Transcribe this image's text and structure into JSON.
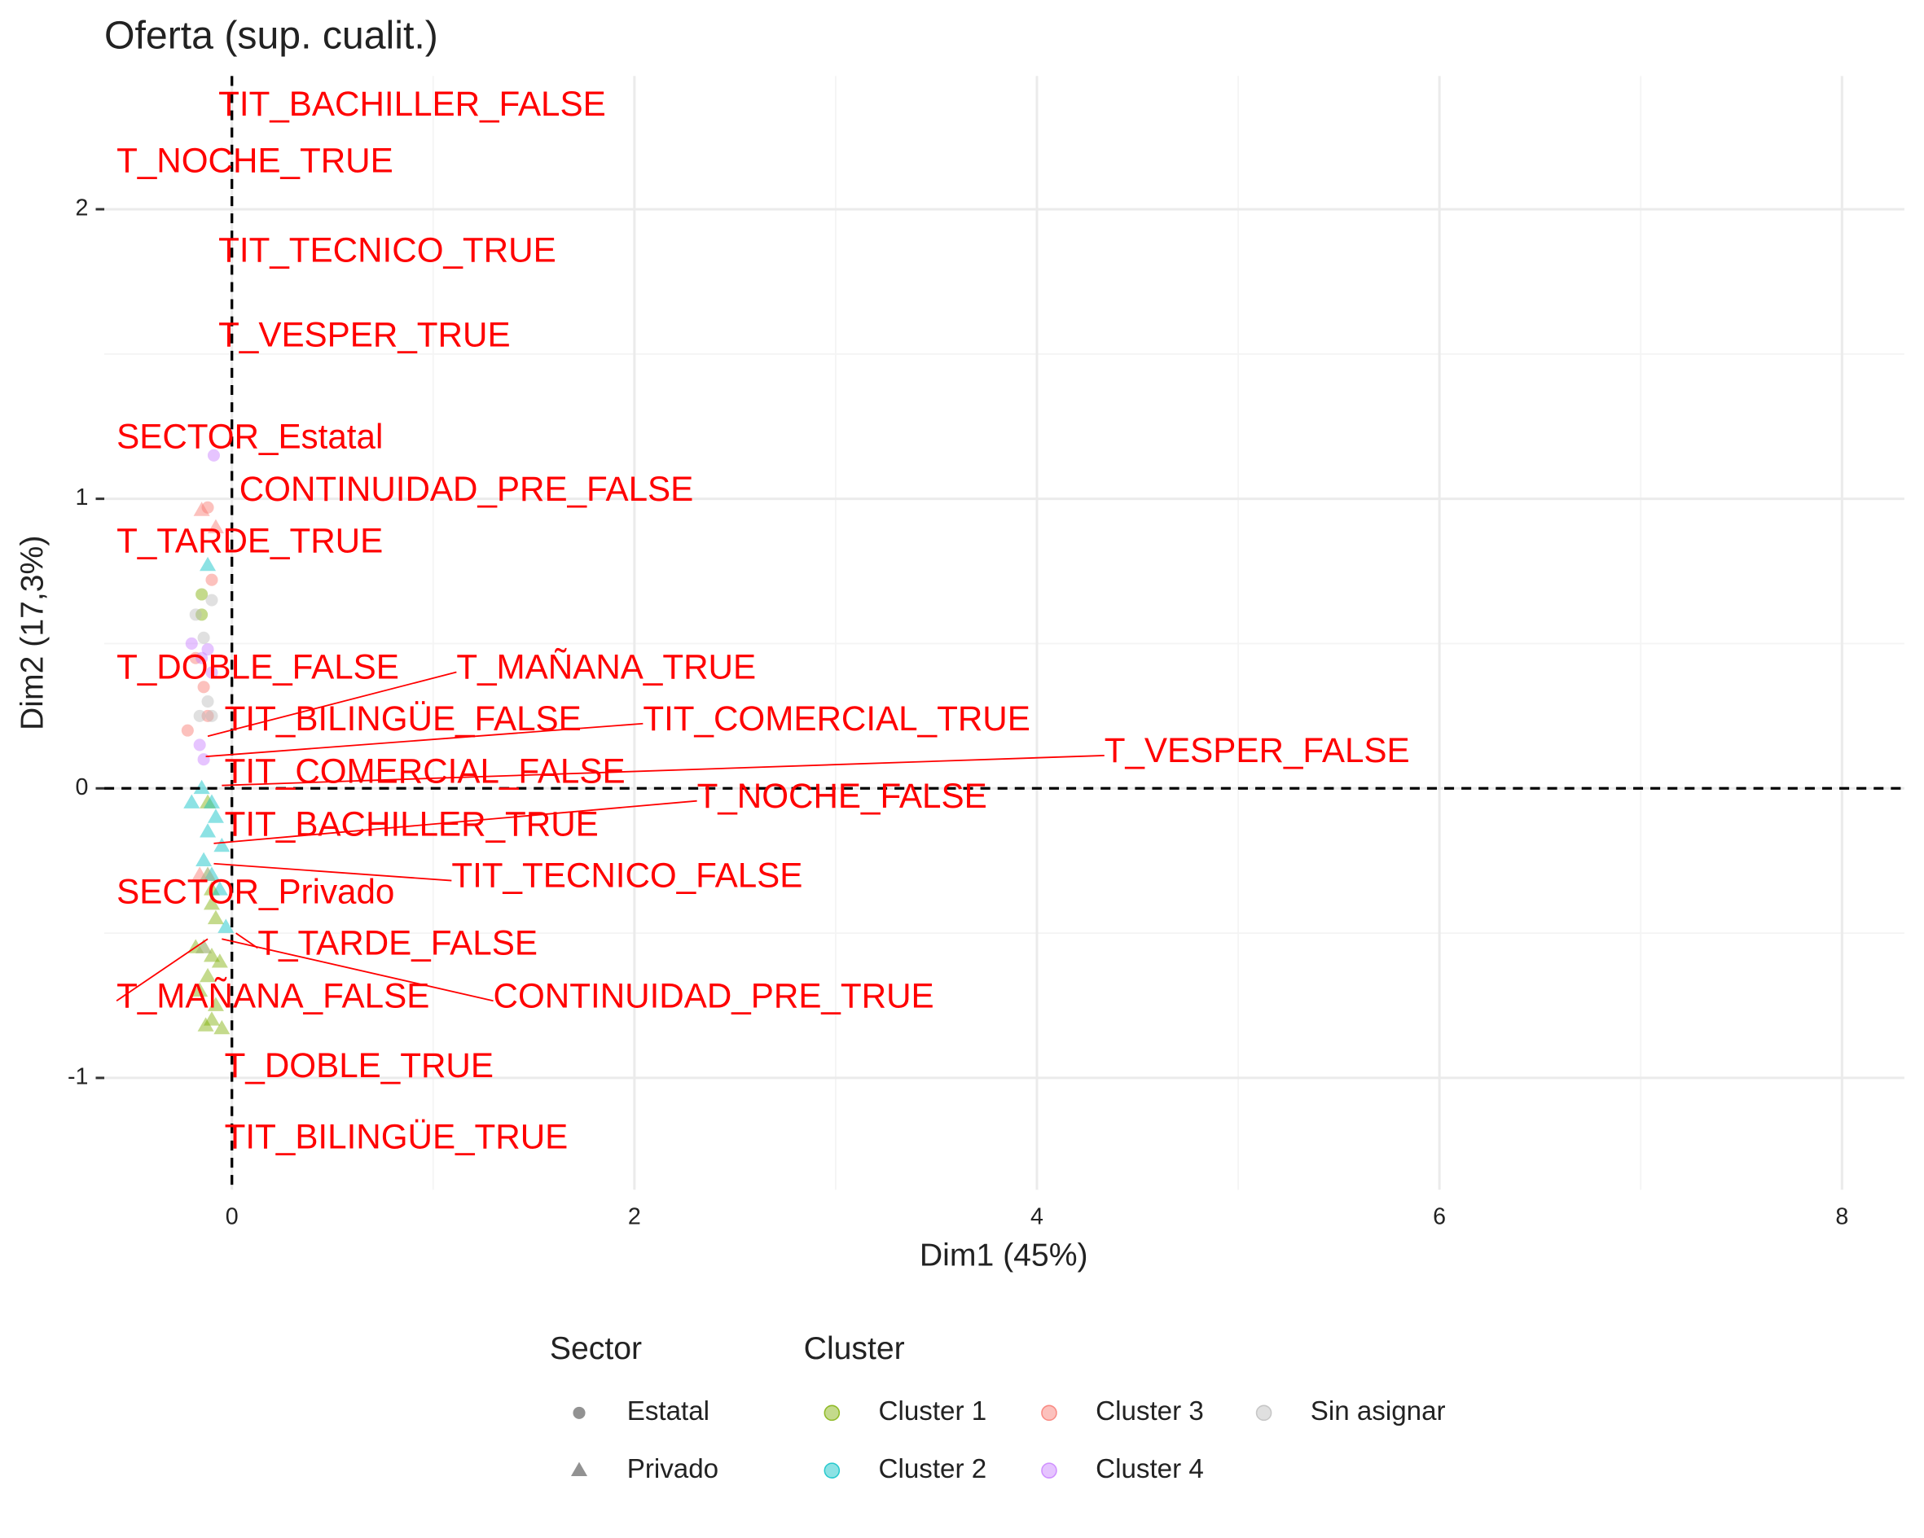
{
  "chart_data": {
    "type": "scatter",
    "title": "Oferta (sup. cualit.)",
    "x_label": "Dim1 (45%)",
    "y_label": "Dim2 (17,3%)",
    "xlim": [
      -0.634,
      8.31
    ],
    "xticks": [
      0,
      2,
      4,
      6,
      8
    ],
    "ylim": [
      -1.386,
      2.46
    ],
    "yticks": [
      -1,
      0,
      1,
      2
    ],
    "grid": true,
    "legend_position": "bottom",
    "shape_legend": {
      "title": "Sector",
      "names": [
        "Estatal",
        "Privado"
      ]
    },
    "color_legend_title": "Cluster",
    "series": [
      {
        "name": "Cluster 1",
        "color": "#7CAE00",
        "x": [
          -0.15,
          -0.15,
          -0.12,
          -0.1,
          -0.08,
          -0.14,
          -0.1,
          -0.06,
          -0.12,
          -0.16,
          -0.08,
          -0.1,
          -0.13,
          -0.05,
          -0.1,
          -0.12,
          -0.18
        ],
        "y": [
          0.67,
          0.6,
          -0.3,
          -0.4,
          -0.45,
          -0.55,
          -0.58,
          -0.6,
          -0.65,
          -0.7,
          -0.75,
          -0.8,
          -0.82,
          -0.83,
          -0.35,
          -0.05,
          -0.55
        ],
        "sector": [
          "Estatal",
          "Estatal",
          "Privado",
          "Privado",
          "Privado",
          "Privado",
          "Privado",
          "Privado",
          "Privado",
          "Privado",
          "Privado",
          "Privado",
          "Privado",
          "Privado",
          "Privado",
          "Privado",
          "Privado"
        ]
      },
      {
        "name": "Cluster 2",
        "color": "#00BFC4",
        "x": [
          -0.12,
          -0.15,
          -0.1,
          -0.08,
          -0.12,
          -0.05,
          -0.14,
          -0.1,
          -0.2,
          -0.06,
          -0.03
        ],
        "y": [
          0.77,
          0.0,
          -0.05,
          -0.1,
          -0.15,
          -0.2,
          -0.25,
          -0.3,
          -0.05,
          -0.35,
          -0.48
        ],
        "sector": [
          "Privado",
          "Privado",
          "Privado",
          "Privado",
          "Privado",
          "Privado",
          "Privado",
          "Privado",
          "Privado",
          "Privado",
          "Privado"
        ]
      },
      {
        "name": "Cluster 3",
        "color": "#F8766D",
        "x": [
          -0.12,
          -0.15,
          -0.08,
          -0.1,
          -0.18,
          -0.14,
          -0.22,
          -0.12,
          -0.16
        ],
        "y": [
          0.97,
          0.96,
          0.9,
          0.72,
          0.45,
          0.35,
          0.2,
          0.25,
          -0.3
        ],
        "sector": [
          "Estatal",
          "Privado",
          "Privado",
          "Estatal",
          "Estatal",
          "Estatal",
          "Estatal",
          "Estatal",
          "Privado"
        ]
      },
      {
        "name": "Cluster 4",
        "color": "#C77CFF",
        "x": [
          -0.09,
          -0.2,
          -0.12,
          -0.15,
          -0.1,
          -0.16,
          -0.14
        ],
        "y": [
          1.15,
          0.5,
          0.48,
          0.45,
          0.4,
          0.15,
          0.1
        ],
        "sector": [
          "Estatal",
          "Estatal",
          "Estatal",
          "Estatal",
          "Estatal",
          "Estatal",
          "Estatal"
        ]
      },
      {
        "name": "Sin asignar",
        "color": "#BBBBBB",
        "x": [
          -0.18,
          -0.14,
          -0.12,
          -0.1,
          -0.16,
          -0.12,
          -0.14,
          -0.1
        ],
        "y": [
          0.6,
          0.52,
          0.3,
          0.25,
          0.25,
          -0.3,
          -0.55,
          0.65
        ],
        "sector": [
          "Estatal",
          "Estatal",
          "Estatal",
          "Estatal",
          "Estatal",
          "Privado",
          "Privado",
          "Estatal"
        ]
      }
    ],
    "supplementary_categories": [
      "TIT_BACHILLER_FALSE",
      "T_NOCHE_TRUE",
      "TIT_TECNICO_TRUE",
      "T_VESPER_TRUE",
      "SECTOR_Estatal",
      "CONTINUIDAD_PRE_FALSE",
      "T_TARDE_TRUE",
      "T_DOBLE_FALSE",
      "T_MAÑANA_TRUE",
      "TIT_BILINGÜE_FALSE",
      "TIT_COMERCIAL_TRUE",
      "T_VESPER_FALSE",
      "TIT_COMERCIAL_FALSE",
      "T_NOCHE_FALSE",
      "TIT_BACHILLER_TRUE",
      "TIT_TECNICO_FALSE",
      "SECTOR_Privado",
      "T_TARDE_FALSE",
      "T_MAÑANA_FALSE",
      "CONTINUIDAD_PRE_TRUE",
      "T_DOBLE_TRUE",
      "TIT_BILINGÜE_TRUE"
    ],
    "supplementary_color": "#FF0000",
    "supplementary_x": [
      -0.02,
      -0.1,
      -0.02,
      -0.02,
      -0.1,
      0.0,
      -0.1,
      -0.12,
      -0.12,
      -0.05,
      -0.13,
      -0.05,
      -0.05,
      -0.09,
      -0.05,
      -0.09,
      -0.12,
      0.02,
      -0.12,
      -0.05,
      -0.02,
      -0.02
    ],
    "supplementary_y": [
      2.36,
      2.16,
      1.85,
      1.56,
      1.21,
      1.02,
      0.84,
      0.41,
      0.18,
      0.23,
      0.11,
      0.01,
      0.05,
      -0.19,
      -0.13,
      -0.26,
      -0.37,
      -0.5,
      -0.52,
      -0.52,
      -0.98,
      -1.22
    ]
  }
}
